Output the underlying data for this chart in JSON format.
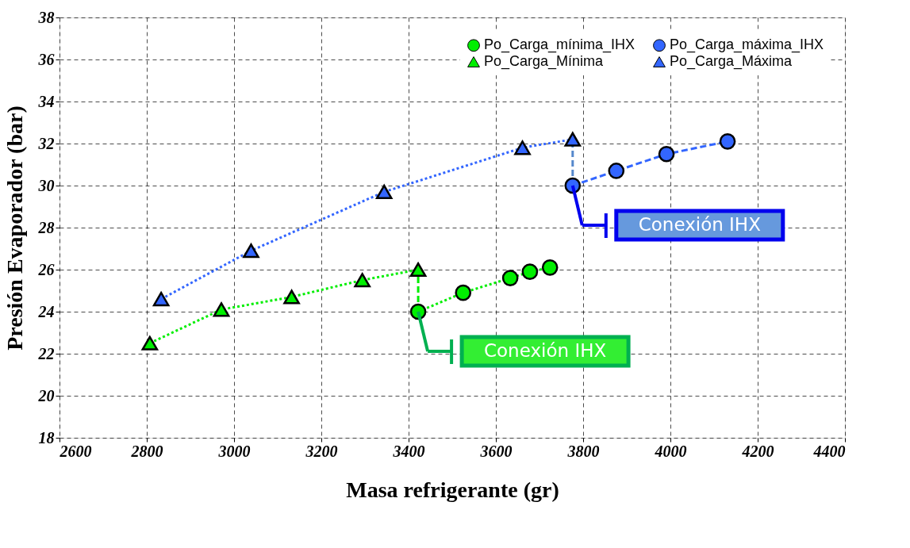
{
  "chart_data": {
    "type": "line",
    "xlabel": "Masa refrigerante (gr)",
    "ylabel": "Presión Evaporador (bar)",
    "xlim": [
      2600,
      4400
    ],
    "xticks": [
      2600,
      2800,
      3000,
      3200,
      3400,
      3600,
      3800,
      4000,
      4200,
      4400
    ],
    "ylim": [
      18,
      38
    ],
    "yticks": [
      18,
      20,
      22,
      24,
      26,
      28,
      30,
      32,
      34,
      36,
      38
    ],
    "grid": true,
    "legend": "top right",
    "series": [
      {
        "name": "Po_Carga_mínima_IHX",
        "color": "#00ee00",
        "marker": "circle",
        "line_style": "dotted",
        "x": [
          3422,
          3525,
          3633,
          3678,
          3724
        ],
        "values": [
          24.0,
          24.9,
          25.6,
          25.9,
          26.1
        ]
      },
      {
        "name": "Po_Carga_máxima_IHX",
        "color": "#3366ff",
        "marker": "circle",
        "line_style": "dashed",
        "x": [
          3776,
          3876,
          3991,
          4131
        ],
        "values": [
          30.0,
          30.7,
          31.5,
          32.1
        ]
      },
      {
        "name": "Po_Carga_Mínima",
        "color": "#00ee00",
        "marker": "triangle",
        "line_style": "dotted",
        "x": [
          2807,
          2971,
          3132,
          3294,
          3422
        ],
        "values": [
          22.5,
          24.1,
          24.7,
          25.5,
          26.0
        ]
      },
      {
        "name": "Po_Carga_Máxima",
        "color": "#3366ff",
        "marker": "triangle",
        "line_style": "dotted",
        "x": [
          2833,
          3039,
          3344,
          3661,
          3776
        ],
        "values": [
          24.6,
          26.9,
          29.7,
          31.8,
          32.2
        ]
      },
      {
        "color": "#00ee00",
        "marker": "none",
        "line_style": "dashed",
        "x": [
          3422,
          3422
        ],
        "values": [
          24.0,
          26.0
        ]
      },
      {
        "color": "#5588cc",
        "marker": "none",
        "line_style": "dashed",
        "x": [
          3776,
          3776
        ],
        "values": [
          30.0,
          32.2
        ]
      }
    ],
    "annotations": [
      "Conexión IHX",
      "Conexión IHX"
    ]
  }
}
